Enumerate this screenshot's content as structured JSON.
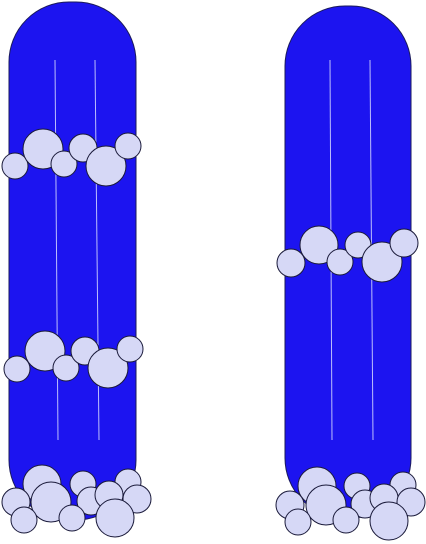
{
  "colors": {
    "background": "#ffffff",
    "tube_fill": "#1c14f0",
    "tube_outline": "#1a1a5a",
    "highlight_line": "#d8dcff",
    "bubble_fill": "#d6d8f6",
    "bubble_outline": "#1a1a3a"
  },
  "tubes": [
    {
      "id": "left",
      "bubble_clusters": [
        {
          "position": "upper"
        },
        {
          "position": "middle"
        },
        {
          "position": "bottom"
        }
      ]
    },
    {
      "id": "right",
      "bubble_clusters": [
        {
          "position": "middle"
        },
        {
          "position": "bottom"
        }
      ]
    }
  ]
}
